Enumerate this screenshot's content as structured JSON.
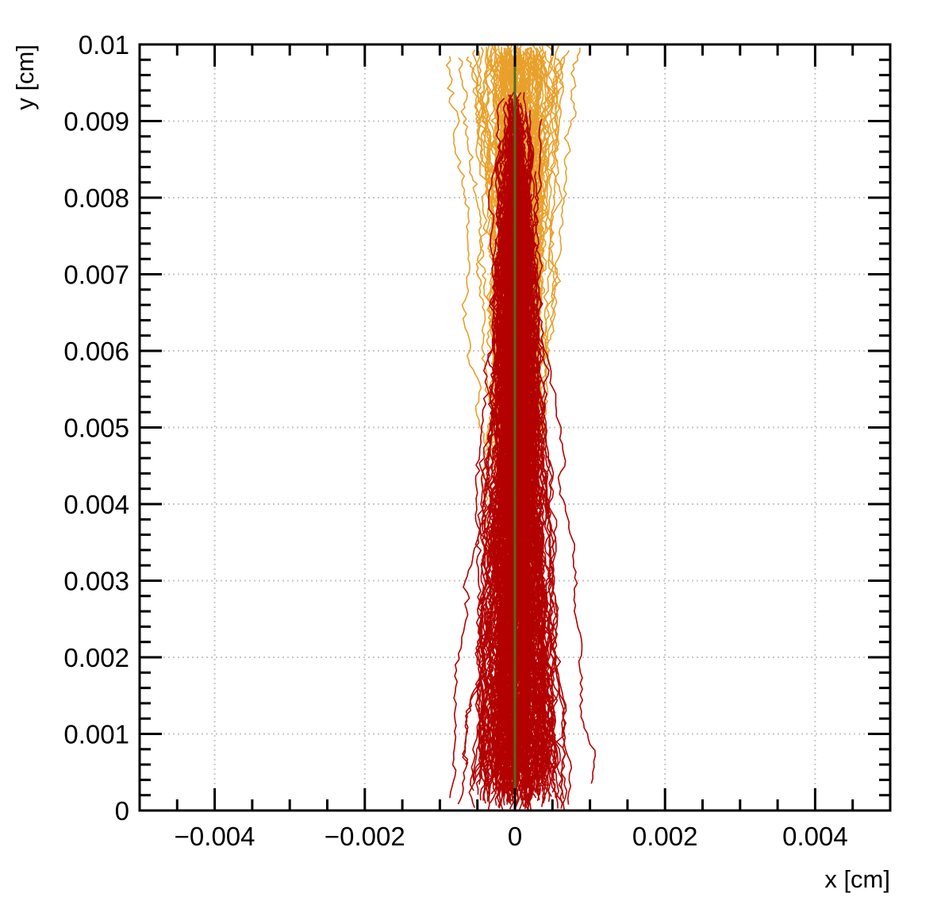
{
  "chart_data": {
    "type": "line",
    "title": "",
    "xlabel": "x [cm]",
    "ylabel": "y [cm]",
    "xlim": [
      -0.005,
      0.005
    ],
    "ylim": [
      0,
      0.01
    ],
    "x_ticks": [
      {
        "value": -0.004,
        "label": "−0.004"
      },
      {
        "value": -0.002,
        "label": "−0.002"
      },
      {
        "value": 0,
        "label": "0"
      },
      {
        "value": 0.002,
        "label": "0.002"
      },
      {
        "value": 0.004,
        "label": "0.004"
      }
    ],
    "y_ticks": [
      {
        "value": 0,
        "label": "0"
      },
      {
        "value": 0.001,
        "label": "0.001"
      },
      {
        "value": 0.002,
        "label": "0.002"
      },
      {
        "value": 0.003,
        "label": "0.003"
      },
      {
        "value": 0.004,
        "label": "0.004"
      },
      {
        "value": 0.005,
        "label": "0.005"
      },
      {
        "value": 0.006,
        "label": "0.006"
      },
      {
        "value": 0.007,
        "label": "0.007"
      },
      {
        "value": 0.008,
        "label": "0.008"
      },
      {
        "value": 0.009,
        "label": "0.009"
      },
      {
        "value": 0.01,
        "label": "0.01"
      }
    ],
    "grid": true,
    "legend": "none",
    "series": [
      {
        "color": "#e8a02a",
        "count": 120,
        "y_range": [
          0.0009,
          0.01
        ],
        "x_spread_at_top": 0.0006,
        "x_spread_at_bottom": 0.00012
      },
      {
        "color": "#b30000",
        "count": 220,
        "y_range": [
          0,
          0.0094
        ],
        "x_spread_at_top": 5e-05,
        "x_spread_at_bottom": 0.0007
      },
      {
        "color": "#4f6b1f",
        "x": [
          0,
          0
        ],
        "y": [
          0,
          0.0099
        ]
      }
    ]
  }
}
